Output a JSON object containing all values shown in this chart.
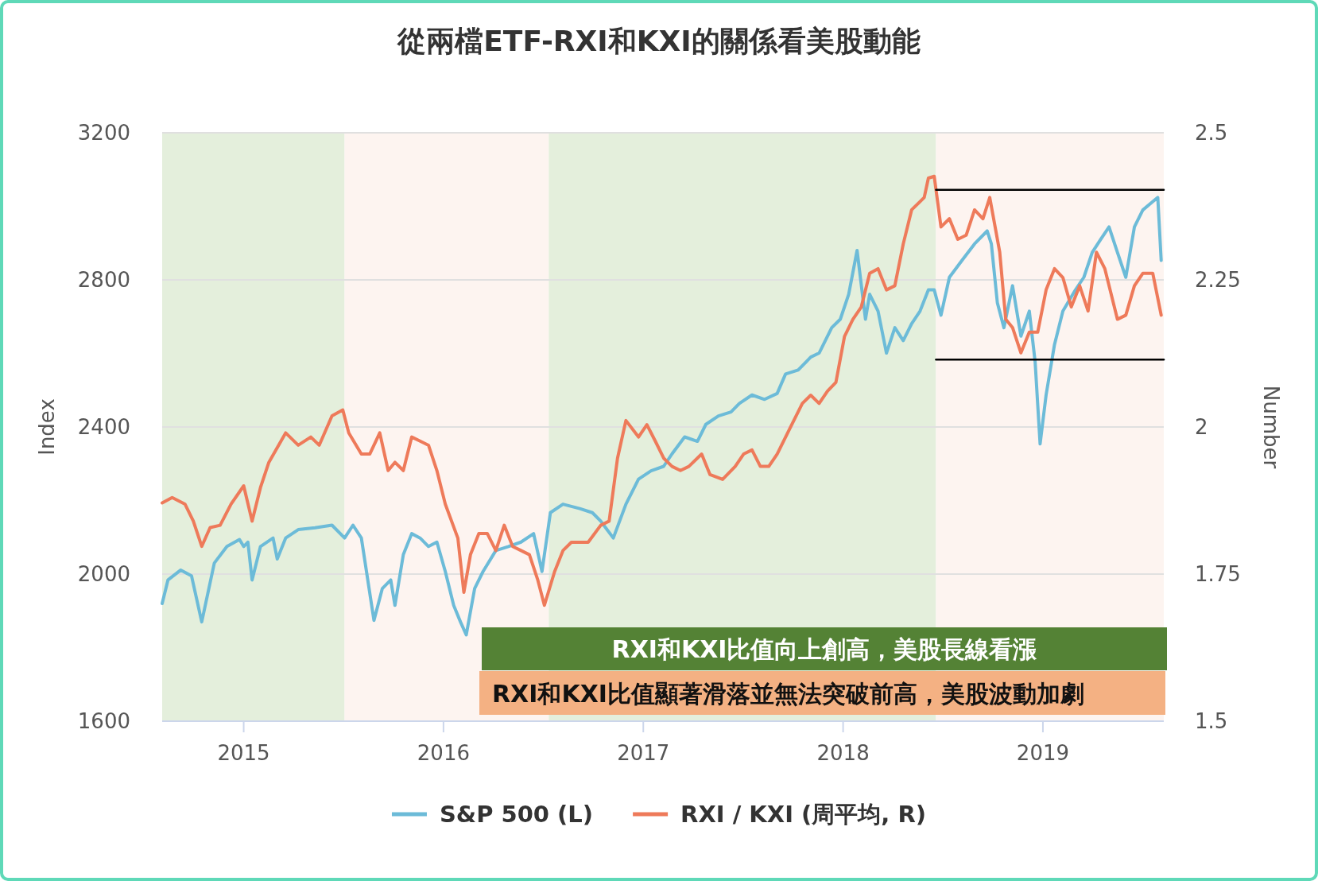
{
  "chart_data": {
    "type": "line",
    "title": "從兩檔ETF-RXI和KXI的關係看美股動能",
    "ylabel": "Index",
    "y2label": "Number",
    "xlim": [
      2014.592,
      2019.605
    ],
    "xticks": [
      2015,
      2016,
      2017,
      2018,
      2019
    ],
    "ylim": [
      1600,
      3200
    ],
    "yticks": [
      1600,
      2000,
      2400,
      2800,
      3200
    ],
    "y2lim": [
      1.5,
      2.5
    ],
    "y2ticks": [
      1.5,
      1.75,
      2,
      2.25,
      2.5
    ],
    "grid": "y",
    "legend": "bottom",
    "bands": [
      {
        "axis": "x",
        "from": 2014.592,
        "to": 2015.505,
        "color": "#e4efdc"
      },
      {
        "axis": "x",
        "from": 2015.505,
        "to": 2016.527,
        "color": "#fdf4f0"
      },
      {
        "axis": "x",
        "from": 2016.527,
        "to": 2018.465,
        "color": "#e4efdc"
      },
      {
        "axis": "x",
        "from": 2018.465,
        "to": 2019.605,
        "color": "#fdf4f0"
      }
    ],
    "annotations": [
      "RXI和KXI比值向上創高，美股長線看漲",
      "RXI和KXI比值顯著滑落並無法突破前高，美股波動加劇"
    ],
    "series": [
      {
        "name": "S&P 500 (L)",
        "color": "#6cbbd8",
        "x": [
          2014.592,
          2014.621,
          2014.685,
          2014.739,
          2014.79,
          2014.853,
          2014.916,
          2014.979,
          2015.0,
          2015.021,
          2015.042,
          2015.084,
          2015.147,
          2015.168,
          2015.21,
          2015.273,
          2015.357,
          2015.442,
          2015.505,
          2015.547,
          2015.589,
          2015.652,
          2015.694,
          2015.736,
          2015.757,
          2015.799,
          2015.841,
          2015.883,
          2015.925,
          2015.967,
          2016.009,
          2016.051,
          2016.085,
          2016.114,
          2016.156,
          2016.198,
          2016.262,
          2016.325,
          2016.388,
          2016.451,
          2016.493,
          2016.535,
          2016.598,
          2016.682,
          2016.745,
          2016.787,
          2016.85,
          2016.913,
          2016.976,
          2017.039,
          2017.102,
          2017.144,
          2017.207,
          2017.271,
          2017.313,
          2017.376,
          2017.439,
          2017.481,
          2017.544,
          2017.607,
          2017.67,
          2017.712,
          2017.775,
          2017.838,
          2017.88,
          2017.943,
          2017.986,
          2018.028,
          2018.07,
          2018.112,
          2018.133,
          2018.175,
          2018.217,
          2018.259,
          2018.301,
          2018.343,
          2018.385,
          2018.427,
          2018.456,
          2018.49,
          2018.532,
          2018.595,
          2018.658,
          2018.721,
          2018.742,
          2018.772,
          2018.805,
          2018.848,
          2018.89,
          2018.932,
          2018.961,
          2018.986,
          2019.016,
          2019.058,
          2019.1,
          2019.163,
          2019.205,
          2019.247,
          2019.289,
          2019.331,
          2019.373,
          2019.415,
          2019.458,
          2019.5,
          2019.55,
          2019.575,
          2019.592
        ],
        "values": [
          1920,
          1984,
          2011,
          1995,
          1870,
          2030,
          2075,
          2094,
          2075,
          2087,
          1984,
          2075,
          2098,
          2041,
          2098,
          2121,
          2126,
          2133,
          2098,
          2133,
          2098,
          1874,
          1961,
          1984,
          1915,
          2053,
          2110,
          2098,
          2075,
          2087,
          2007,
          1915,
          1870,
          1835,
          1961,
          2007,
          2064,
          2075,
          2087,
          2110,
          2007,
          2167,
          2190,
          2178,
          2167,
          2144,
          2098,
          2190,
          2258,
          2281,
          2293,
          2327,
          2373,
          2361,
          2407,
          2430,
          2441,
          2464,
          2487,
          2475,
          2491,
          2544,
          2555,
          2590,
          2601,
          2670,
          2693,
          2761,
          2880,
          2693,
          2761,
          2715,
          2601,
          2670,
          2635,
          2681,
          2715,
          2773,
          2773,
          2704,
          2807,
          2853,
          2898,
          2933,
          2898,
          2738,
          2670,
          2784,
          2647,
          2715,
          2578,
          2354,
          2487,
          2624,
          2715,
          2773,
          2807,
          2875,
          2910,
          2944,
          2875,
          2807,
          2944,
          2990,
          3013,
          3024,
          2853
        ]
      },
      {
        "name": "RXI / KXI (周平均, R)",
        "color": "#ee7a5a",
        "axis": "y2",
        "x": [
          2014.592,
          2014.642,
          2014.706,
          2014.748,
          2014.79,
          2014.832,
          2014.882,
          2014.937,
          2015.0,
          2015.042,
          2015.084,
          2015.126,
          2015.21,
          2015.273,
          2015.336,
          2015.378,
          2015.442,
          2015.496,
          2015.526,
          2015.589,
          2015.631,
          2015.681,
          2015.723,
          2015.757,
          2015.799,
          2015.841,
          2015.883,
          2015.925,
          2015.967,
          2016.009,
          2016.072,
          2016.102,
          2016.135,
          2016.177,
          2016.219,
          2016.262,
          2016.304,
          2016.346,
          2016.388,
          2016.43,
          2016.472,
          2016.505,
          2016.556,
          2016.598,
          2016.64,
          2016.724,
          2016.787,
          2016.829,
          2016.871,
          2016.913,
          2016.976,
          2017.018,
          2017.06,
          2017.102,
          2017.144,
          2017.186,
          2017.228,
          2017.292,
          2017.334,
          2017.397,
          2017.46,
          2017.502,
          2017.544,
          2017.586,
          2017.628,
          2017.67,
          2017.733,
          2017.796,
          2017.838,
          2017.88,
          2017.922,
          2017.964,
          2018.007,
          2018.049,
          2018.091,
          2018.133,
          2018.175,
          2018.217,
          2018.259,
          2018.301,
          2018.343,
          2018.406,
          2018.427,
          2018.456,
          2018.49,
          2018.532,
          2018.574,
          2018.616,
          2018.658,
          2018.7,
          2018.734,
          2018.784,
          2018.814,
          2018.848,
          2018.89,
          2018.932,
          2018.974,
          2019.016,
          2019.058,
          2019.1,
          2019.142,
          2019.184,
          2019.226,
          2019.268,
          2019.31,
          2019.373,
          2019.415,
          2019.458,
          2019.5,
          2019.55,
          2019.592
        ],
        "values": [
          1.871,
          1.88,
          1.869,
          1.84,
          1.797,
          1.829,
          1.833,
          1.869,
          1.9,
          1.84,
          1.897,
          1.94,
          1.99,
          1.969,
          1.983,
          1.969,
          2.019,
          2.029,
          1.99,
          1.954,
          1.954,
          1.99,
          1.926,
          1.94,
          1.926,
          1.983,
          1.976,
          1.969,
          1.926,
          1.869,
          1.811,
          1.719,
          1.783,
          1.819,
          1.819,
          1.79,
          1.833,
          1.797,
          1.79,
          1.783,
          1.74,
          1.697,
          1.754,
          1.79,
          1.804,
          1.804,
          1.833,
          1.84,
          1.947,
          2.011,
          1.983,
          2.004,
          1.976,
          1.947,
          1.933,
          1.926,
          1.933,
          1.954,
          1.919,
          1.911,
          1.933,
          1.954,
          1.961,
          1.933,
          1.933,
          1.954,
          1.997,
          2.04,
          2.054,
          2.04,
          2.061,
          2.076,
          2.154,
          2.183,
          2.204,
          2.261,
          2.269,
          2.233,
          2.24,
          2.311,
          2.369,
          2.39,
          2.423,
          2.426,
          2.34,
          2.354,
          2.319,
          2.326,
          2.369,
          2.354,
          2.39,
          2.297,
          2.183,
          2.169,
          2.126,
          2.161,
          2.161,
          2.233,
          2.269,
          2.254,
          2.204,
          2.24,
          2.197,
          2.297,
          2.269,
          2.183,
          2.19,
          2.24,
          2.261,
          2.261,
          2.19
        ]
      },
      {
        "color": "#000000",
        "x": [
          2018.465,
          2019.605
        ],
        "values": [
          3045,
          3045
        ]
      },
      {
        "color": "#000000",
        "x": [
          2018.465,
          2019.605
        ],
        "values": [
          2583,
          2583
        ]
      }
    ]
  }
}
